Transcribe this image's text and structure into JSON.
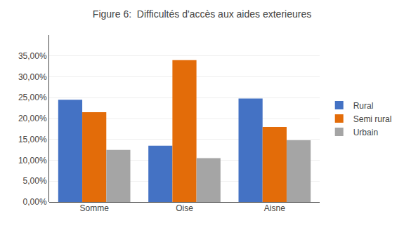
{
  "chart_data": {
    "type": "bar",
    "title": "Figure 6:  Difficultés d'accès aux aides exterieures",
    "categories": [
      "Somme",
      "Oise",
      "Aisne"
    ],
    "series": [
      {
        "name": "Rural",
        "color": "#4472C4",
        "values": [
          0.245,
          0.135,
          0.248
        ]
      },
      {
        "name": "Semi rural",
        "color": "#E36C09",
        "values": [
          0.215,
          0.34,
          0.18
        ]
      },
      {
        "name": "Urbain",
        "color": "#A5A5A5",
        "values": [
          0.125,
          0.105,
          0.148
        ]
      }
    ],
    "ylim": [
      0,
      0.4
    ],
    "yticks": [
      {
        "value": 0.0,
        "label": "0,00%"
      },
      {
        "value": 0.05,
        "label": "5,00%"
      },
      {
        "value": 0.1,
        "label": "10,00%"
      },
      {
        "value": 0.15,
        "label": "15,00%"
      },
      {
        "value": 0.2,
        "label": "20,00%"
      },
      {
        "value": 0.25,
        "label": "25,00%"
      },
      {
        "value": 0.3,
        "label": "30,00%"
      },
      {
        "value": 0.35,
        "label": "35,00%"
      }
    ],
    "grid": true,
    "legend": "right"
  }
}
